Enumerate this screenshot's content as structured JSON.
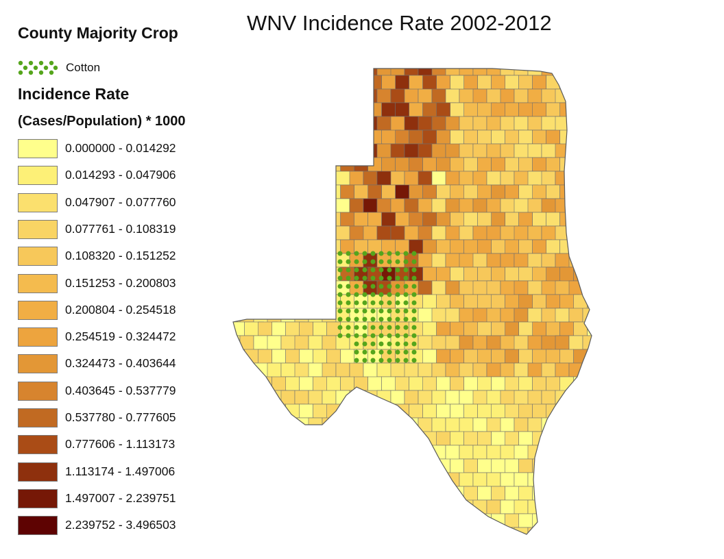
{
  "map": {
    "title": "WNV Incidence Rate 2002-2012",
    "region": "Texas and Oklahoma counties",
    "outline_color": "#6e6e6e",
    "cotton_dot_color": "#55a51c"
  },
  "legend": {
    "crop_title": "County Majority Crop",
    "crop_items": [
      {
        "label": "Cotton",
        "icon": "green-dot-pattern",
        "color": "#55a51c"
      }
    ],
    "rate_title": "Incidence Rate",
    "rate_unit": "(Cases/Population) * 1000",
    "classes": [
      {
        "label": "0.000000 - 0.014292",
        "color": "#ffff8c"
      },
      {
        "label": "0.014293 - 0.047906",
        "color": "#fdf077"
      },
      {
        "label": "0.047907 - 0.077760",
        "color": "#fbe06e"
      },
      {
        "label": "0.077761 - 0.108319",
        "color": "#f9d464"
      },
      {
        "label": "0.108320 - 0.151252",
        "color": "#f7c85a"
      },
      {
        "label": "0.151253 - 0.200803",
        "color": "#f4bb4e"
      },
      {
        "label": "0.200804 - 0.254518",
        "color": "#f1ae44"
      },
      {
        "label": "0.254519 - 0.324472",
        "color": "#eda43e"
      },
      {
        "label": "0.324473 - 0.403644",
        "color": "#e39736"
      },
      {
        "label": "0.403645 - 0.537779",
        "color": "#d7842e"
      },
      {
        "label": "0.537780 - 0.777605",
        "color": "#c16a22"
      },
      {
        "label": "0.777606 - 1.113173",
        "color": "#aa4c16"
      },
      {
        "label": "1.113174 - 1.497006",
        "color": "#8e300d"
      },
      {
        "label": "1.497007 - 2.239751",
        "color": "#761806"
      },
      {
        "label": "2.239752 - 3.496503",
        "color": "#5e0302"
      }
    ]
  }
}
